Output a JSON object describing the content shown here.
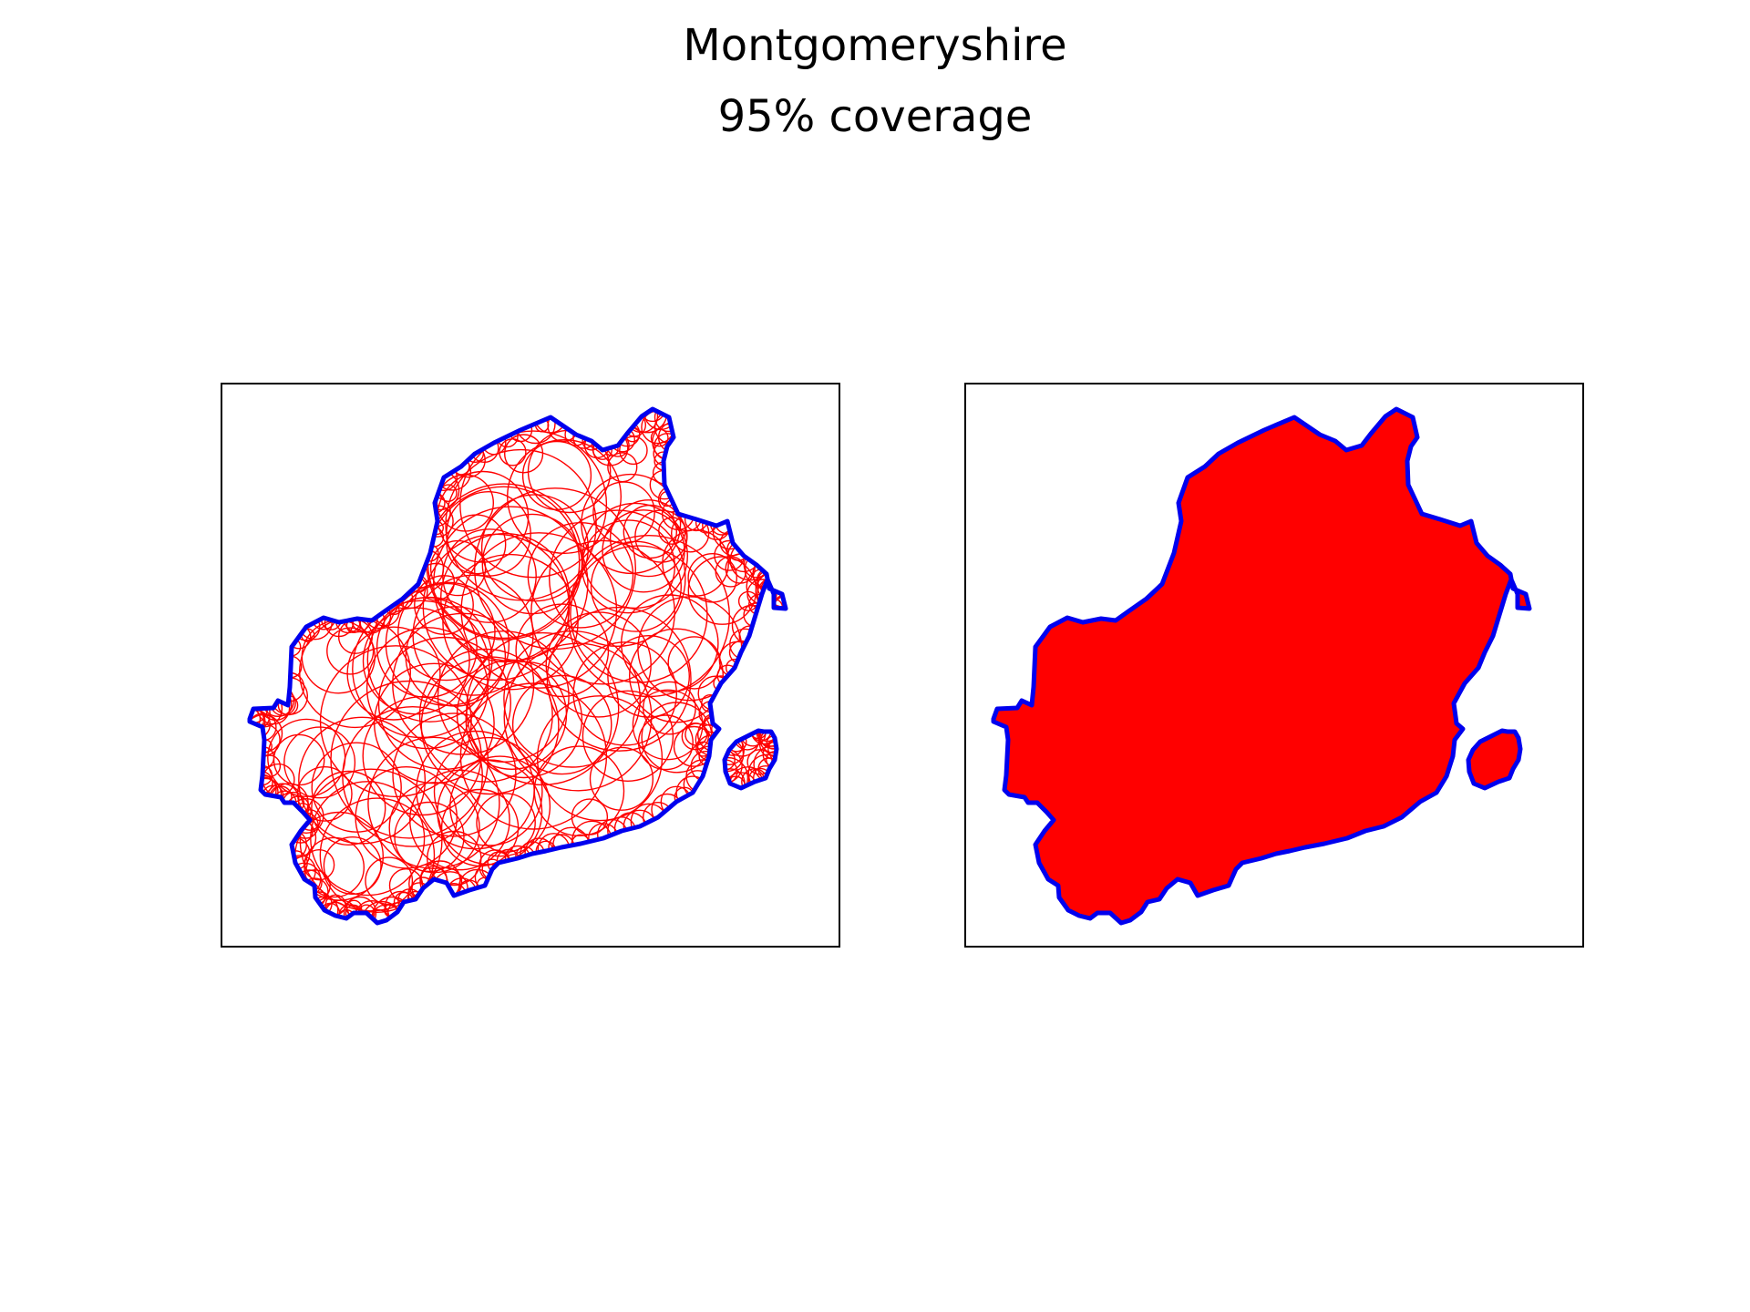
{
  "figure": {
    "title": "Montgomeryshire",
    "subtitle": "95% coverage"
  },
  "colors": {
    "boundary": "#0000ee",
    "coverage": "#ff0000",
    "frame": "#000000",
    "background": "#ffffff"
  },
  "panels": [
    {
      "id": "circles-panel",
      "style": "circle-outlines"
    },
    {
      "id": "filled-panel",
      "style": "filled-union"
    }
  ]
}
